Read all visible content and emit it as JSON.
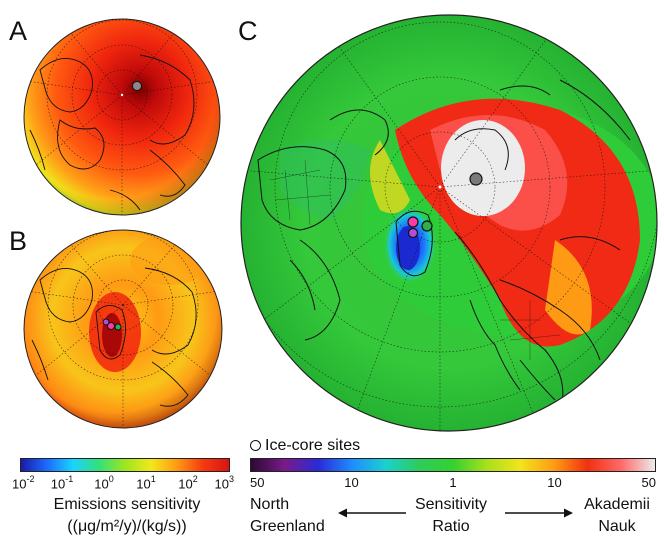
{
  "panels": {
    "a": {
      "label": "A"
    },
    "b": {
      "label": "B"
    },
    "c": {
      "label": "C"
    }
  },
  "legend": {
    "ice_core_sites": "Ice-core sites"
  },
  "emissions_colorbar": {
    "ticks": [
      {
        "base": "10",
        "exp": "-2"
      },
      {
        "base": "10",
        "exp": "-1"
      },
      {
        "base": "10",
        "exp": "0"
      },
      {
        "base": "10",
        "exp": "1"
      },
      {
        "base": "10",
        "exp": "2"
      },
      {
        "base": "10",
        "exp": "3"
      }
    ],
    "title_line1": "Emissions sensitivity",
    "title_line2": "((μg/m²/y)/(kg/s))",
    "colors": [
      "#1a1aa8",
      "#1d6bff",
      "#19d4ff",
      "#35e07a",
      "#9ce61e",
      "#f2e81a",
      "#ff9a12",
      "#f53a10",
      "#d81414"
    ]
  },
  "ratio_colorbar": {
    "ticks": [
      "50",
      "10",
      "1",
      "10",
      "50"
    ],
    "left_label_line1": "North",
    "left_label_line2": "Greenland",
    "center_label_line1": "Sensitivity",
    "center_label_line2": "Ratio",
    "right_label_line1": "Akademii",
    "right_label_line2": "Nauk",
    "colors": [
      "#2a0a32",
      "#7a1a8a",
      "#2a2ad8",
      "#1f8cff",
      "#1ad0d0",
      "#2fcc5a",
      "#35d030",
      "#a8e01c",
      "#f2e41a",
      "#ff9c14",
      "#f23010",
      "#ff6a6a",
      "#ececec"
    ]
  },
  "site_colors": {
    "north_greenland": "#ff3aa8",
    "site_b": "#b24fd8",
    "site_c": "#2cb04a",
    "akademii_nauk": "#7a7a7a"
  }
}
